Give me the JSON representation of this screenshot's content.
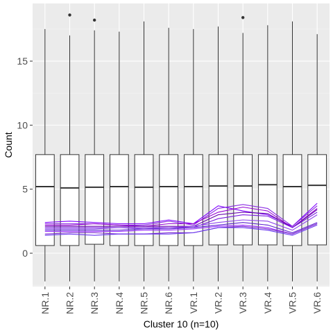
{
  "chart_data": {
    "type": "boxplot",
    "xlabel": "Cluster 10 (n=10)",
    "ylabel": "Count",
    "categories": [
      "NR.1",
      "NR.2",
      "NR.3",
      "NR.4",
      "NR.5",
      "NR.6",
      "VR.1",
      "VR.2",
      "VR.3",
      "VR.4",
      "VR.5",
      "VR.6"
    ],
    "ylim": [
      -2.6,
      19.5
    ],
    "yticks": [
      0,
      5,
      10,
      15
    ],
    "grid": true,
    "boxes": [
      {
        "whisker_low": -2.2,
        "q1": 0.6,
        "median": 5.2,
        "q3": 7.7,
        "whisker_high": 17.5,
        "outliers": []
      },
      {
        "whisker_low": -2.2,
        "q1": 0.6,
        "median": 5.1,
        "q3": 7.7,
        "whisker_high": 17.0,
        "outliers": [
          18.6
        ]
      },
      {
        "whisker_low": -2.2,
        "q1": 0.7,
        "median": 5.15,
        "q3": 7.7,
        "whisker_high": 17.4,
        "outliers": [
          18.2
        ]
      },
      {
        "whisker_low": -2.2,
        "q1": 0.6,
        "median": 5.2,
        "q3": 7.7,
        "whisker_high": 17.3,
        "outliers": []
      },
      {
        "whisker_low": -2.2,
        "q1": 0.6,
        "median": 5.15,
        "q3": 7.7,
        "whisker_high": 18.1,
        "outliers": []
      },
      {
        "whisker_low": -2.2,
        "q1": 0.6,
        "median": 5.2,
        "q3": 7.7,
        "whisker_high": 17.6,
        "outliers": []
      },
      {
        "whisker_low": -2.2,
        "q1": 0.6,
        "median": 5.2,
        "q3": 7.7,
        "whisker_high": 17.5,
        "outliers": []
      },
      {
        "whisker_low": -2.2,
        "q1": 0.65,
        "median": 5.25,
        "q3": 7.7,
        "whisker_high": 17.7,
        "outliers": []
      },
      {
        "whisker_low": -2.2,
        "q1": 0.65,
        "median": 5.25,
        "q3": 7.7,
        "whisker_high": 17.2,
        "outliers": [
          18.4
        ]
      },
      {
        "whisker_low": -2.2,
        "q1": 0.65,
        "median": 5.35,
        "q3": 7.7,
        "whisker_high": 17.8,
        "outliers": []
      },
      {
        "whisker_low": -2.2,
        "q1": 0.6,
        "median": 5.2,
        "q3": 7.7,
        "whisker_high": 18.1,
        "outliers": []
      },
      {
        "whisker_low": -2.2,
        "q1": 0.65,
        "median": 5.3,
        "q3": 7.7,
        "whisker_high": 17.1,
        "outliers": []
      }
    ],
    "series": [
      {
        "values": [
          2.4,
          2.5,
          2.4,
          2.3,
          2.3,
          2.6,
          2.3,
          3.7,
          3.3,
          3.0,
          2.1,
          3.9
        ]
      },
      {
        "values": [
          2.3,
          2.3,
          2.3,
          2.2,
          2.2,
          2.5,
          2.2,
          3.5,
          3.8,
          3.5,
          2.1,
          3.7
        ]
      },
      {
        "values": [
          2.2,
          2.2,
          2.3,
          2.2,
          2.1,
          2.3,
          2.3,
          3.2,
          3.6,
          3.3,
          2.0,
          3.5
        ]
      },
      {
        "values": [
          2.1,
          2.1,
          2.1,
          2.1,
          2.1,
          2.1,
          2.1,
          3.0,
          3.2,
          3.1,
          2.0,
          3.4
        ]
      },
      {
        "values": [
          2.0,
          2.0,
          2.0,
          2.0,
          2.0,
          2.0,
          2.0,
          2.7,
          3.0,
          2.9,
          2.0,
          3.2
        ]
      },
      {
        "values": [
          1.9,
          1.9,
          1.9,
          2.0,
          1.9,
          2.0,
          2.1,
          2.4,
          2.6,
          2.5,
          1.8,
          3.0
        ]
      },
      {
        "values": [
          1.8,
          1.8,
          1.8,
          1.8,
          1.9,
          1.9,
          2.0,
          2.2,
          2.4,
          2.2,
          1.6,
          2.4
        ]
      },
      {
        "values": [
          1.7,
          1.7,
          1.7,
          1.7,
          1.8,
          1.8,
          1.9,
          2.1,
          2.2,
          2.0,
          1.5,
          2.3
        ]
      },
      {
        "values": [
          1.5,
          1.6,
          1.6,
          1.5,
          1.5,
          1.6,
          1.6,
          2.0,
          2.1,
          1.9,
          1.5,
          2.3
        ]
      },
      {
        "values": [
          1.4,
          1.5,
          1.4,
          1.5,
          1.5,
          1.5,
          1.6,
          2.0,
          2.0,
          1.8,
          1.4,
          2.2
        ]
      }
    ],
    "line_colors": [
      "#7f00ff",
      "#8a2be2",
      "#9400d3",
      "#6a0dad",
      "#7b1fe0",
      "#8e44ec",
      "#5c20d0",
      "#9b30ff",
      "#7a28cc",
      "#6633ee"
    ],
    "colors": {
      "panel": "#ebebeb",
      "grid_major": "#ffffff",
      "grid_minor": "#f4f4f4",
      "box_fill": "#ffffff",
      "box_stroke": "#333333",
      "outlier": "#333333"
    }
  }
}
